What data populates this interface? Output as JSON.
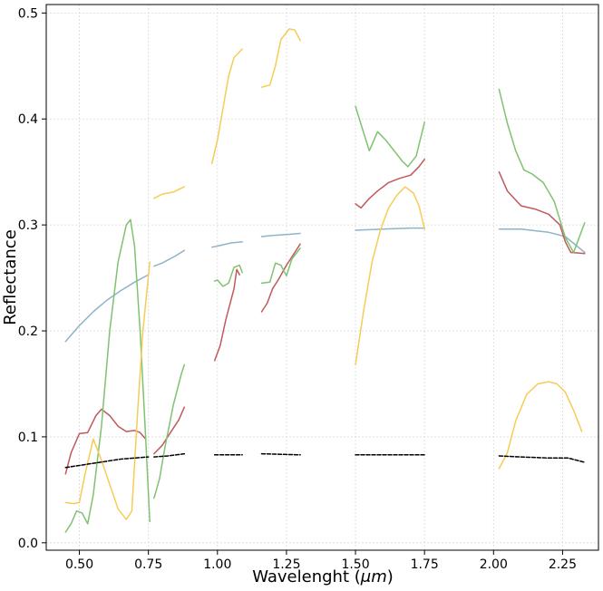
{
  "chart_data": {
    "type": "line",
    "title": "",
    "xlabel": "Wavelenght (μm)",
    "xlabel_text": "Wavelenght (",
    "xlabel_unit": "μm",
    "xlabel_close": ")",
    "ylabel": "Reflectance",
    "xlim": [
      0.38,
      2.38
    ],
    "ylim": [
      -0.007,
      0.508
    ],
    "grid": true,
    "legend": "none",
    "xticks": [
      0.5,
      0.75,
      1.0,
      1.25,
      1.5,
      1.75,
      2.0,
      2.25
    ],
    "xtick_labels": [
      "0.50",
      "0.75",
      "1.00",
      "1.25",
      "1.50",
      "1.75",
      "2.00",
      "2.25"
    ],
    "yticks": [
      0.0,
      0.1,
      0.2,
      0.3,
      0.4,
      0.5
    ],
    "ytick_labels": [
      "0.0",
      "0.1",
      "0.2",
      "0.3",
      "0.4",
      "0.5"
    ],
    "series": [
      {
        "color": "#8fb3c9",
        "style": "solid",
        "segments": [
          [
            [
              0.45,
              0.19
            ],
            [
              0.5,
              0.205
            ],
            [
              0.55,
              0.218
            ],
            [
              0.6,
              0.229
            ],
            [
              0.65,
              0.238
            ],
            [
              0.7,
              0.246
            ],
            [
              0.75,
              0.253
            ]
          ],
          [
            [
              0.77,
              0.261
            ],
            [
              0.8,
              0.264
            ],
            [
              0.85,
              0.271
            ],
            [
              0.88,
              0.276
            ]
          ],
          [
            [
              0.98,
              0.279
            ],
            [
              1.0,
              0.28
            ],
            [
              1.05,
              0.283
            ],
            [
              1.09,
              0.284
            ]
          ],
          [
            [
              1.16,
              0.289
            ],
            [
              1.2,
              0.29
            ],
            [
              1.25,
              0.291
            ],
            [
              1.3,
              0.292
            ]
          ],
          [
            [
              1.5,
              0.295
            ],
            [
              1.6,
              0.296
            ],
            [
              1.7,
              0.297
            ],
            [
              1.75,
              0.297
            ]
          ],
          [
            [
              2.02,
              0.296
            ],
            [
              2.1,
              0.296
            ],
            [
              2.2,
              0.293
            ],
            [
              2.26,
              0.289
            ],
            [
              2.33,
              0.274
            ]
          ]
        ]
      },
      {
        "color": "#c0595c",
        "style": "solid",
        "segments": [
          [
            [
              0.45,
              0.065
            ],
            [
              0.47,
              0.085
            ],
            [
              0.5,
              0.103
            ],
            [
              0.53,
              0.104
            ],
            [
              0.56,
              0.12
            ],
            [
              0.58,
              0.126
            ],
            [
              0.61,
              0.12
            ],
            [
              0.64,
              0.11
            ],
            [
              0.67,
              0.105
            ],
            [
              0.7,
              0.106
            ],
            [
              0.72,
              0.104
            ],
            [
              0.74,
              0.098
            ]
          ],
          [
            [
              0.77,
              0.084
            ],
            [
              0.8,
              0.092
            ],
            [
              0.83,
              0.104
            ],
            [
              0.86,
              0.116
            ],
            [
              0.88,
              0.128
            ]
          ],
          [
            [
              0.99,
              0.172
            ],
            [
              1.01,
              0.186
            ],
            [
              1.03,
              0.21
            ],
            [
              1.06,
              0.24
            ],
            [
              1.07,
              0.258
            ],
            [
              1.08,
              0.253
            ]
          ],
          [
            [
              1.16,
              0.218
            ],
            [
              1.18,
              0.226
            ],
            [
              1.2,
              0.24
            ],
            [
              1.22,
              0.248
            ],
            [
              1.25,
              0.262
            ],
            [
              1.28,
              0.274
            ],
            [
              1.3,
              0.282
            ]
          ],
          [
            [
              1.5,
              0.32
            ],
            [
              1.52,
              0.316
            ],
            [
              1.55,
              0.325
            ],
            [
              1.58,
              0.332
            ],
            [
              1.62,
              0.34
            ],
            [
              1.66,
              0.344
            ],
            [
              1.7,
              0.347
            ],
            [
              1.73,
              0.355
            ],
            [
              1.75,
              0.362
            ]
          ],
          [
            [
              2.02,
              0.35
            ],
            [
              2.05,
              0.332
            ],
            [
              2.1,
              0.318
            ],
            [
              2.15,
              0.315
            ],
            [
              2.2,
              0.31
            ],
            [
              2.24,
              0.3
            ],
            [
              2.26,
              0.284
            ],
            [
              2.28,
              0.274
            ],
            [
              2.33,
              0.273
            ]
          ]
        ]
      },
      {
        "color": "#7fc270",
        "style": "solid",
        "segments": [
          [
            [
              0.45,
              0.01
            ],
            [
              0.47,
              0.018
            ],
            [
              0.49,
              0.03
            ],
            [
              0.51,
              0.028
            ],
            [
              0.53,
              0.018
            ],
            [
              0.55,
              0.045
            ],
            [
              0.58,
              0.11
            ],
            [
              0.61,
              0.2
            ],
            [
              0.64,
              0.265
            ],
            [
              0.67,
              0.3
            ],
            [
              0.685,
              0.305
            ],
            [
              0.7,
              0.28
            ],
            [
              0.72,
              0.2
            ],
            [
              0.74,
              0.1
            ],
            [
              0.755,
              0.02
            ]
          ],
          [
            [
              0.77,
              0.042
            ],
            [
              0.79,
              0.06
            ],
            [
              0.81,
              0.09
            ],
            [
              0.84,
              0.13
            ],
            [
              0.87,
              0.16
            ],
            [
              0.88,
              0.168
            ]
          ],
          [
            [
              0.99,
              0.247
            ],
            [
              1.0,
              0.248
            ],
            [
              1.02,
              0.242
            ],
            [
              1.04,
              0.245
            ],
            [
              1.06,
              0.26
            ],
            [
              1.08,
              0.262
            ],
            [
              1.09,
              0.255
            ]
          ],
          [
            [
              1.16,
              0.245
            ],
            [
              1.19,
              0.246
            ],
            [
              1.21,
              0.264
            ],
            [
              1.23,
              0.262
            ],
            [
              1.25,
              0.252
            ],
            [
              1.27,
              0.268
            ],
            [
              1.3,
              0.278
            ]
          ],
          [
            [
              1.5,
              0.412
            ],
            [
              1.52,
              0.395
            ],
            [
              1.55,
              0.37
            ],
            [
              1.58,
              0.388
            ],
            [
              1.61,
              0.38
            ],
            [
              1.64,
              0.37
            ],
            [
              1.67,
              0.36
            ],
            [
              1.69,
              0.355
            ],
            [
              1.72,
              0.365
            ],
            [
              1.75,
              0.397
            ]
          ],
          [
            [
              2.02,
              0.428
            ],
            [
              2.05,
              0.396
            ],
            [
              2.08,
              0.37
            ],
            [
              2.11,
              0.352
            ],
            [
              2.14,
              0.348
            ],
            [
              2.18,
              0.34
            ],
            [
              2.22,
              0.322
            ],
            [
              2.26,
              0.288
            ],
            [
              2.29,
              0.274
            ],
            [
              2.33,
              0.302
            ]
          ]
        ]
      },
      {
        "color": "#f5cc55",
        "style": "solid",
        "segments": [
          [
            [
              0.45,
              0.038
            ],
            [
              0.48,
              0.037
            ],
            [
              0.5,
              0.038
            ],
            [
              0.52,
              0.064
            ],
            [
              0.55,
              0.098
            ],
            [
              0.58,
              0.078
            ],
            [
              0.61,
              0.055
            ],
            [
              0.64,
              0.032
            ],
            [
              0.67,
              0.022
            ],
            [
              0.69,
              0.03
            ],
            [
              0.71,
              0.12
            ],
            [
              0.73,
              0.2
            ],
            [
              0.755,
              0.265
            ]
          ],
          [
            [
              0.77,
              0.325
            ],
            [
              0.8,
              0.329
            ],
            [
              0.84,
              0.331
            ],
            [
              0.88,
              0.336
            ]
          ],
          [
            [
              0.98,
              0.358
            ],
            [
              1.0,
              0.38
            ],
            [
              1.02,
              0.41
            ],
            [
              1.04,
              0.44
            ],
            [
              1.06,
              0.458
            ],
            [
              1.09,
              0.466
            ]
          ],
          [
            [
              1.16,
              0.43
            ],
            [
              1.19,
              0.432
            ],
            [
              1.21,
              0.45
            ],
            [
              1.23,
              0.475
            ],
            [
              1.26,
              0.485
            ],
            [
              1.28,
              0.484
            ],
            [
              1.3,
              0.474
            ]
          ],
          [
            [
              1.5,
              0.168
            ],
            [
              1.53,
              0.22
            ],
            [
              1.56,
              0.265
            ],
            [
              1.59,
              0.295
            ],
            [
              1.62,
              0.316
            ],
            [
              1.65,
              0.328
            ],
            [
              1.68,
              0.336
            ],
            [
              1.71,
              0.33
            ],
            [
              1.73,
              0.318
            ],
            [
              1.75,
              0.296
            ]
          ],
          [
            [
              2.02,
              0.07
            ],
            [
              2.05,
              0.085
            ],
            [
              2.08,
              0.115
            ],
            [
              2.12,
              0.14
            ],
            [
              2.16,
              0.15
            ],
            [
              2.2,
              0.152
            ],
            [
              2.23,
              0.15
            ],
            [
              2.26,
              0.142
            ],
            [
              2.29,
              0.125
            ],
            [
              2.32,
              0.105
            ]
          ]
        ]
      },
      {
        "color": "#000000",
        "style": "dashed",
        "segments": [
          [
            [
              0.45,
              0.071
            ],
            [
              0.5,
              0.073
            ],
            [
              0.55,
              0.075
            ],
            [
              0.6,
              0.077
            ],
            [
              0.65,
              0.079
            ],
            [
              0.7,
              0.08
            ],
            [
              0.75,
              0.081
            ]
          ],
          [
            [
              0.77,
              0.081
            ],
            [
              0.82,
              0.082
            ],
            [
              0.88,
              0.084
            ]
          ],
          [
            [
              0.99,
              0.083
            ],
            [
              1.09,
              0.083
            ]
          ],
          [
            [
              1.16,
              0.084
            ],
            [
              1.3,
              0.083
            ]
          ],
          [
            [
              1.5,
              0.083
            ],
            [
              1.75,
              0.083
            ]
          ],
          [
            [
              2.02,
              0.082
            ],
            [
              2.1,
              0.081
            ],
            [
              2.2,
              0.08
            ],
            [
              2.27,
              0.08
            ],
            [
              2.33,
              0.076
            ]
          ]
        ]
      }
    ]
  }
}
